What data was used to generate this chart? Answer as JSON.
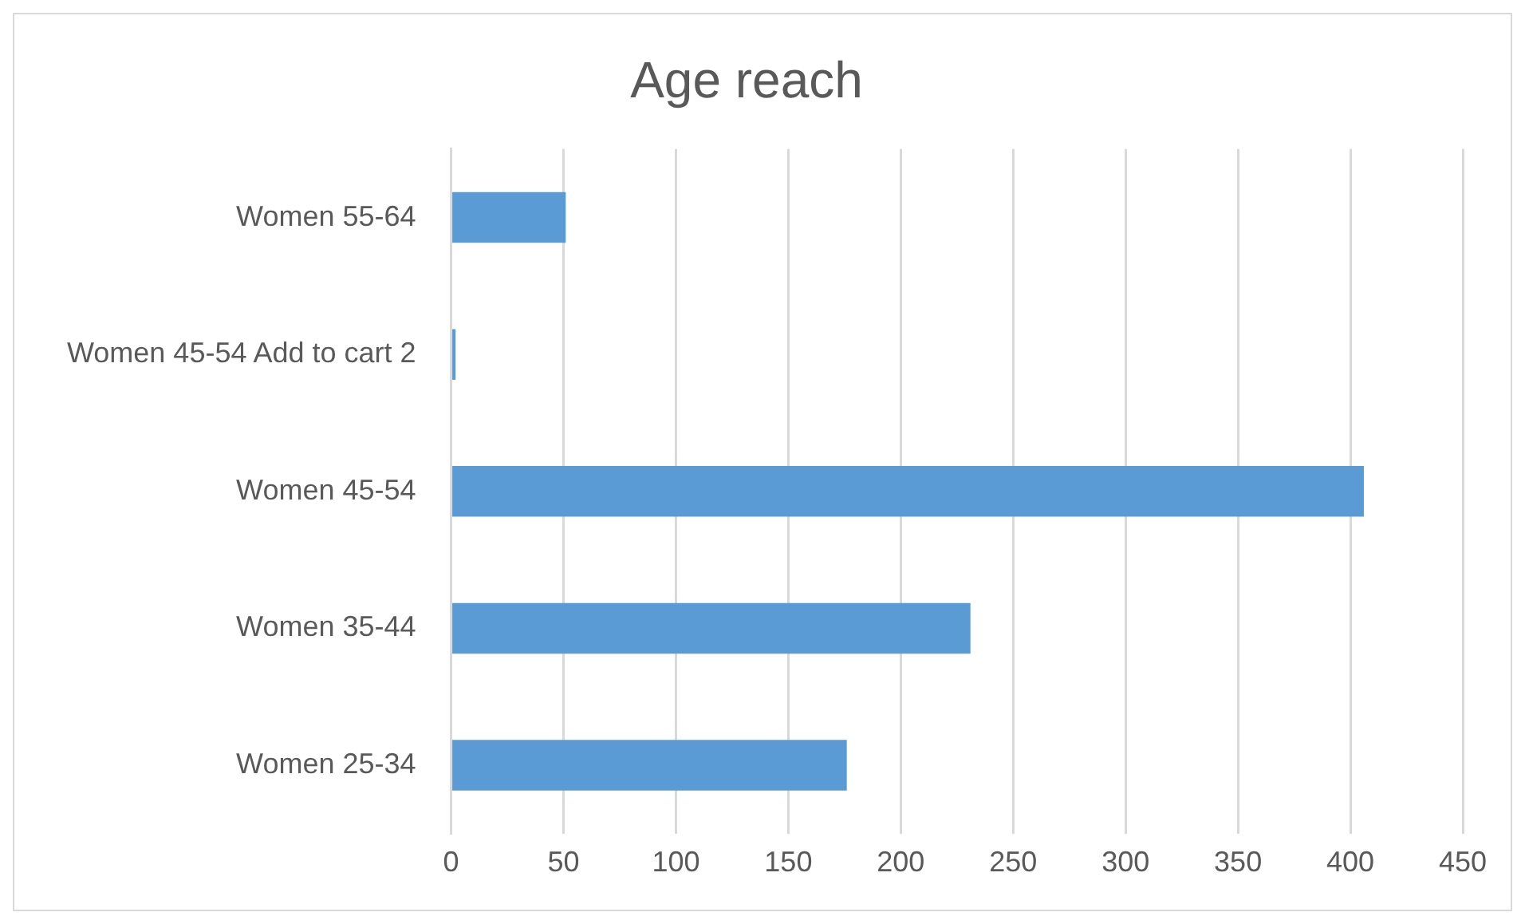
{
  "chart_data": {
    "type": "bar",
    "orientation": "horizontal",
    "title": "Age reach",
    "categories": [
      "Women 55-64",
      "Women 45-54 Add to cart 2",
      "Women 45-54",
      "Women 35-44",
      "Women 25-34"
    ],
    "values": [
      51,
      2,
      406,
      231,
      176
    ],
    "color": "#5b9bd5",
    "xlim": [
      0,
      450
    ],
    "xticks": [
      0,
      50,
      100,
      150,
      200,
      250,
      300,
      350,
      400,
      450
    ],
    "grid": "x"
  }
}
